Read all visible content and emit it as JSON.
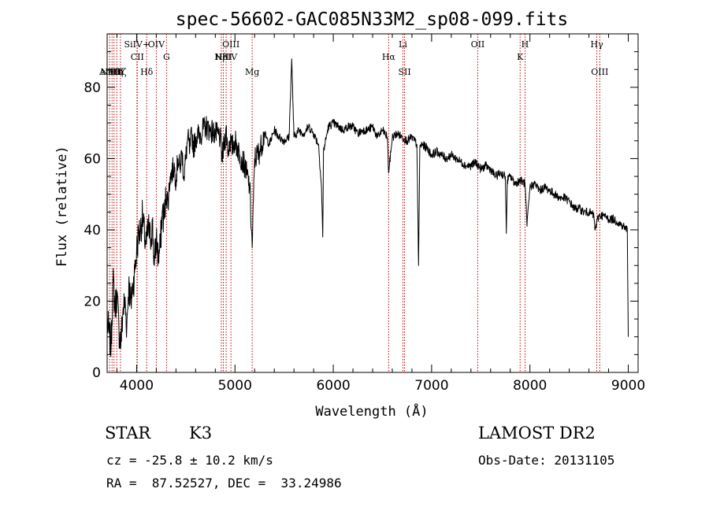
{
  "chart_data": {
    "type": "line",
    "title": "spec-56602-GAC085N33M2_sp08-099.fits",
    "xlabel": "Wavelength (Å)",
    "ylabel": "Flux (relative)",
    "xlim": [
      3700,
      9100
    ],
    "ylim": [
      0,
      95
    ],
    "xticks": [
      4000,
      5000,
      6000,
      7000,
      8000,
      9000
    ],
    "xtick_labels": [
      "4000",
      "5000",
      "6000",
      "7000",
      "8000",
      "9000"
    ],
    "yticks": [
      0,
      20,
      40,
      60,
      80
    ],
    "ytick_labels": [
      "0",
      "20",
      "40",
      "60",
      "80"
    ],
    "grid": false,
    "line_color": "#000000",
    "marker_color": "#c00000",
    "series": [
      {
        "x": [
          3700,
          3720,
          3740,
          3760,
          3780,
          3800,
          3820,
          3840,
          3860,
          3880,
          3900,
          3920,
          3940,
          3960,
          3980,
          4000,
          4020,
          4040,
          4060,
          4080,
          4100,
          4120,
          4140,
          4160,
          4180,
          4200,
          4220,
          4240,
          4260,
          4280,
          4300,
          4320,
          4340,
          4360,
          4380,
          4400,
          4420,
          4440,
          4460,
          4480,
          4500,
          4520,
          4540,
          4560,
          4580,
          4600,
          4650,
          4700,
          4750,
          4800,
          4850,
          4870,
          4890,
          4910,
          4930,
          4950,
          4970,
          5000,
          5050,
          5100,
          5150,
          5175,
          5200,
          5250,
          5300,
          5350,
          5400,
          5450,
          5500,
          5550,
          5577,
          5600,
          5650,
          5700,
          5750,
          5800,
          5850,
          5880,
          5893,
          5900,
          5950,
          6000,
          6050,
          6100,
          6150,
          6200,
          6250,
          6300,
          6350,
          6400,
          6450,
          6500,
          6550,
          6563,
          6600,
          6650,
          6700,
          6750,
          6800,
          6850,
          6867,
          6880,
          6900,
          6950,
          7000,
          7050,
          7100,
          7150,
          7200,
          7250,
          7300,
          7350,
          7400,
          7450,
          7500,
          7550,
          7600,
          7650,
          7700,
          7750,
          7760,
          7770,
          7800,
          7850,
          7900,
          7950,
          7970,
          8000,
          8050,
          8100,
          8150,
          8200,
          8250,
          8300,
          8350,
          8400,
          8450,
          8500,
          8550,
          8600,
          8650,
          8660,
          8700,
          8750,
          8800,
          8850,
          8900,
          8950,
          8990,
          9000
        ],
        "y": [
          14,
          11,
          7,
          26,
          18,
          22,
          12,
          8,
          17,
          20,
          13,
          25,
          19,
          24,
          28,
          34,
          39,
          40,
          44,
          38,
          36,
          41,
          37,
          42,
          30,
          38,
          32,
          35,
          45,
          43,
          50,
          48,
          55,
          56,
          58,
          54,
          60,
          57,
          62,
          55,
          60,
          66,
          62,
          67,
          63,
          66,
          67,
          69,
          68,
          67,
          66,
          60,
          64,
          68,
          62,
          65,
          63,
          65,
          61,
          58,
          52,
          35,
          60,
          62,
          67,
          64,
          68,
          66,
          65,
          66,
          88,
          66,
          68,
          67,
          69,
          67,
          64,
          52,
          38,
          62,
          69,
          70,
          69,
          68,
          69,
          69,
          67,
          68,
          68,
          69,
          66,
          68,
          66,
          56,
          66,
          67,
          66,
          65,
          66,
          64,
          30,
          63,
          64,
          63,
          61,
          62,
          61,
          60,
          61,
          60,
          59,
          58,
          58,
          59,
          57,
          58,
          57,
          55,
          56,
          55,
          39,
          54,
          55,
          53,
          54,
          53,
          41,
          52,
          53,
          51,
          52,
          51,
          50,
          49,
          49,
          48,
          46,
          46,
          45,
          45,
          44,
          40,
          44,
          44,
          43,
          43,
          42,
          41,
          40,
          10
        ]
      }
    ],
    "line_markers": [
      {
        "x": 3725,
        "label": "ArIII",
        "row": 2
      },
      {
        "x": 3750,
        "label": "NeIII",
        "row": 2
      },
      {
        "x": 3770,
        "label": "Hθ",
        "row": 2
      },
      {
        "x": 3798,
        "label": "Hη",
        "row": 2
      },
      {
        "x": 3835,
        "label": "Hζ",
        "row": 2
      },
      {
        "x": 4003,
        "label": "SiIV+",
        "row": 0
      },
      {
        "x": 4007,
        "label": "CII",
        "row": 1
      },
      {
        "x": 4102,
        "label": "Hδ",
        "row": 2
      },
      {
        "x": 4200,
        "label": "OIV",
        "row": 0
      },
      {
        "x": 4304,
        "label": "G",
        "row": 1
      },
      {
        "x": 4861,
        "label": "Hβ",
        "row": 1
      },
      {
        "x": 4882,
        "label": "NIII",
        "row": 1
      },
      {
        "x": 4910,
        "label": "HeIV",
        "row": 1
      },
      {
        "x": 4959,
        "label": "OIII",
        "row": 0
      },
      {
        "x": 5175,
        "label": "Mg",
        "row": 2
      },
      {
        "x": 6563,
        "label": "Hα",
        "row": 1
      },
      {
        "x": 6708,
        "label": "Li",
        "row": 0
      },
      {
        "x": 6725,
        "label": "SII",
        "row": 2
      },
      {
        "x": 7469,
        "label": "OII",
        "row": 0
      },
      {
        "x": 7900,
        "label": "K",
        "row": 1
      },
      {
        "x": 7950,
        "label": "H",
        "row": 0
      },
      {
        "x": 8680,
        "label": "Hγ",
        "row": 0
      },
      {
        "x": 8710,
        "label": "OIII",
        "row": 2
      }
    ]
  },
  "info": {
    "object_class": "STAR",
    "subclass": "K3",
    "survey": "LAMOST DR2",
    "redshift": "cz = -25.8 ± 10.2 km/s",
    "obs_date": "Obs-Date: 20131105",
    "coords": "RA =  87.52527, DEC =  33.24986"
  }
}
